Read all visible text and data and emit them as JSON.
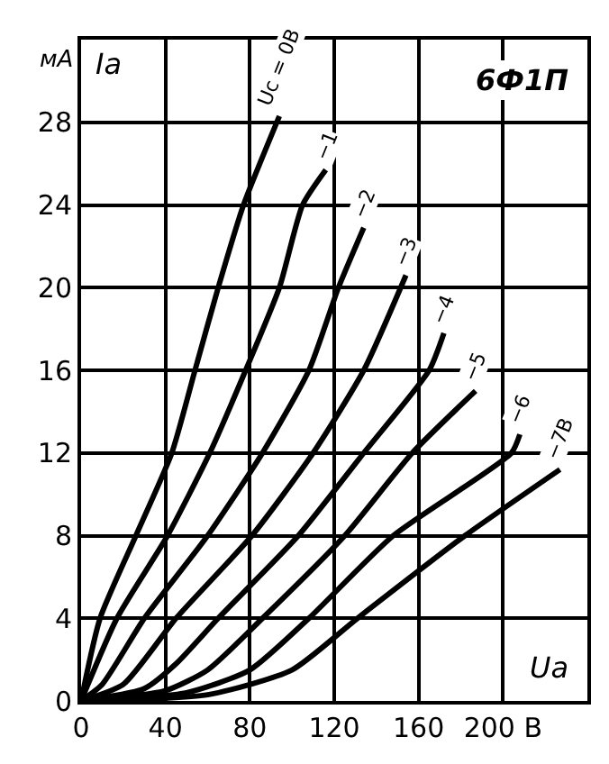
{
  "chart_data": {
    "type": "line",
    "title": "6Ф1П",
    "xlabel": "Uа",
    "ylabel": "Iа",
    "annotations": [
      "мА"
    ],
    "xlim": [
      0,
      240
    ],
    "ylim": [
      0,
      32
    ],
    "xticks": [
      0,
      40,
      80,
      120,
      160,
      {
        "value": 200,
        "label": "200 В"
      }
    ],
    "yticks": [
      0,
      4,
      8,
      12,
      16,
      20,
      24,
      28
    ],
    "grid": true,
    "legend": false,
    "marker": "none",
    "line_style": "solid",
    "series": [
      {
        "name": "Uc = 0В",
        "color": "#000000",
        "x": [
          0,
          9,
          26,
          43,
          54,
          65,
          77,
          94
        ],
        "values": [
          0,
          4,
          8,
          12,
          16,
          20,
          24,
          28.3
        ]
      },
      {
        "name": "−1",
        "color": "#000000",
        "x": [
          0,
          17,
          41,
          61,
          78,
          94,
          105,
          116
        ],
        "values": [
          0,
          4,
          8,
          12,
          16,
          20,
          24,
          25.7
        ]
      },
      {
        "name": "−2",
        "color": "#000000",
        "x": [
          0,
          10,
          30,
          60,
          86,
          108,
          122,
          134
        ],
        "values": [
          0,
          0.8,
          4,
          8,
          12,
          16,
          20,
          22.9
        ]
      },
      {
        "name": "−3",
        "color": "#000000",
        "x": [
          0,
          20,
          45,
          81,
          110,
          134,
          154
        ],
        "values": [
          0,
          0.8,
          4,
          8,
          12,
          16,
          20.6
        ]
      },
      {
        "name": "−4",
        "color": "#000000",
        "x": [
          0,
          30,
          45,
          65,
          103,
          134,
          165,
          172
        ],
        "values": [
          0,
          0.6,
          1.8,
          4,
          8,
          12,
          16,
          17.8
        ]
      },
      {
        "name": "−5",
        "color": "#000000",
        "x": [
          0,
          40,
          60,
          86,
          125,
          157,
          187
        ],
        "values": [
          0,
          0.5,
          1.5,
          4,
          8,
          12,
          15
        ]
      },
      {
        "name": "−6",
        "color": "#000000",
        "x": [
          0,
          50,
          80,
          108,
          148,
          204,
          208
        ],
        "values": [
          0,
          0.4,
          1.5,
          4,
          8,
          12,
          12.9
        ]
      },
      {
        "name": "−7В",
        "color": "#000000",
        "x": [
          0,
          60,
          100,
          131,
          182,
          227
        ],
        "values": [
          0,
          0.3,
          1.5,
          4,
          8,
          11.2
        ]
      }
    ]
  }
}
